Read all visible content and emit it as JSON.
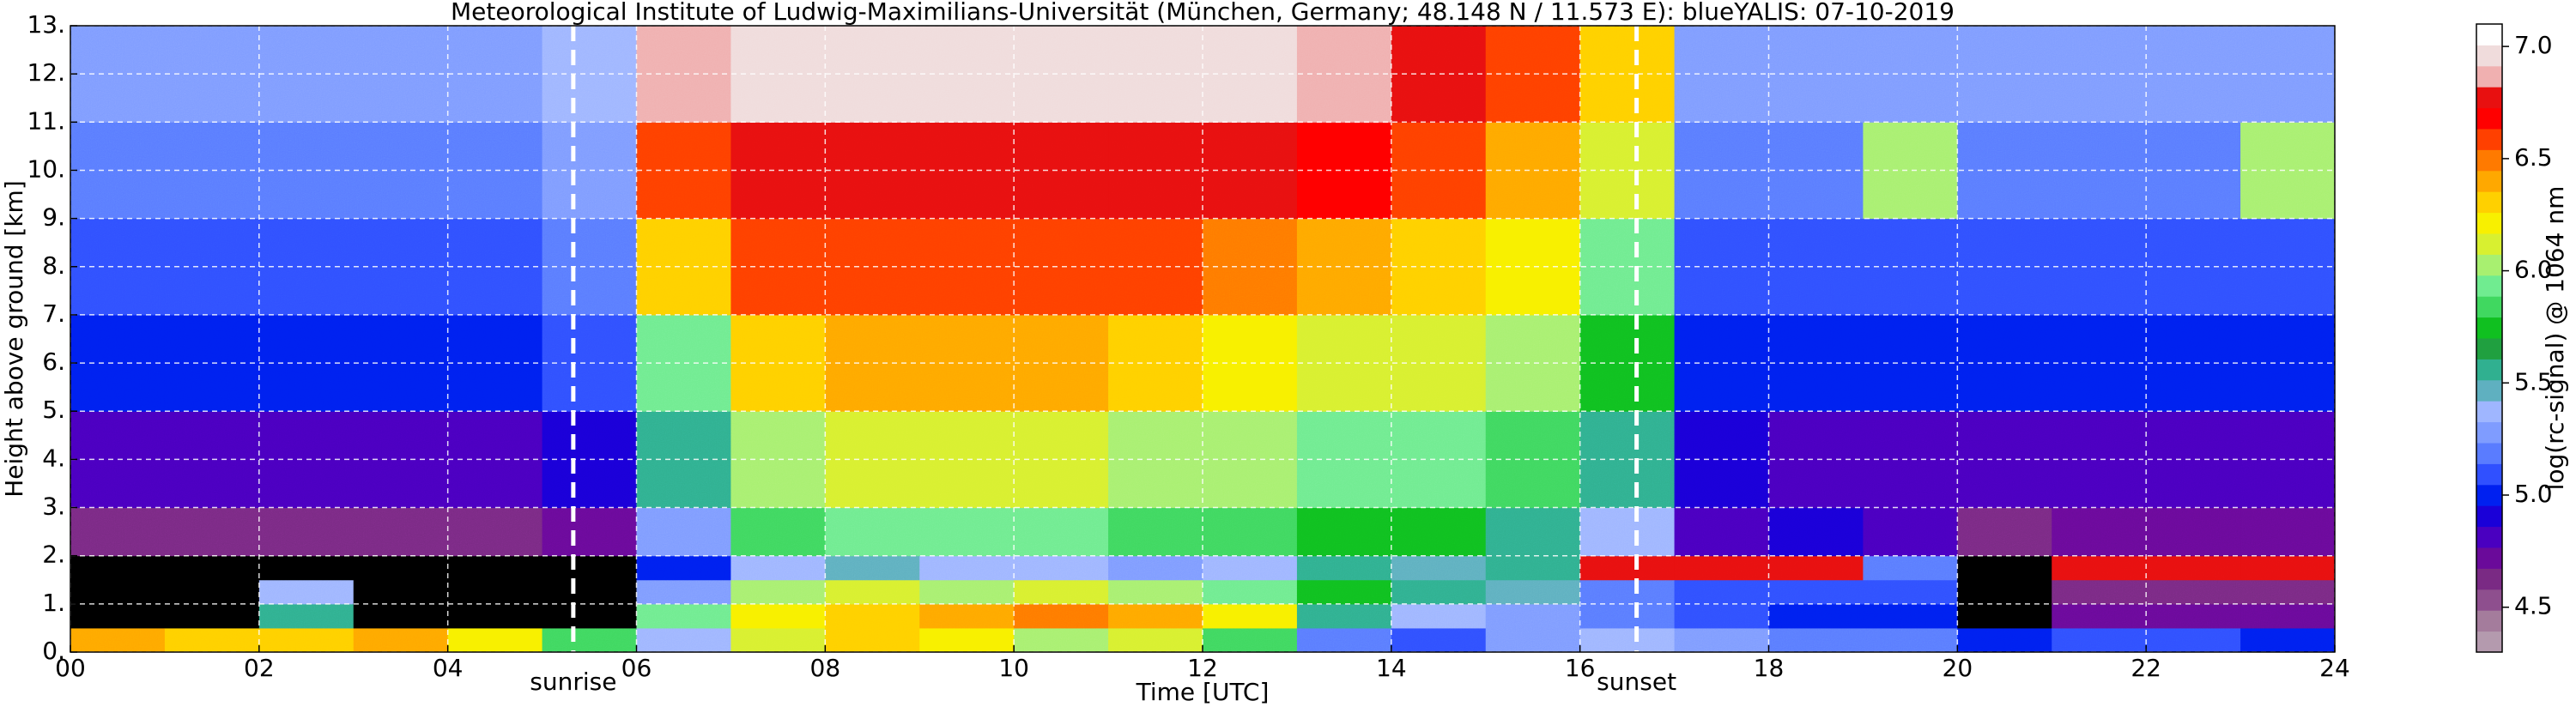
{
  "chart_data": {
    "type": "heatmap",
    "title": "Meteorological Institute of Ludwig-Maximilians-Universität (München, Germany; 48.148 N / 11.573 E):    blueYALIS: 07-10-2019",
    "xlabel": "Time [UTC]",
    "ylabel": "Height above ground [km]",
    "xlim": [
      0,
      24
    ],
    "ylim": [
      0,
      13
    ],
    "xticks": [
      {
        "value": 0,
        "label": "00"
      },
      {
        "value": 2,
        "label": "02"
      },
      {
        "value": 4,
        "label": "04"
      },
      {
        "value": 6,
        "label": "06"
      },
      {
        "value": 8,
        "label": "08"
      },
      {
        "value": 10,
        "label": "10"
      },
      12,
      14,
      16,
      18,
      20,
      22,
      24
    ],
    "yticks": [
      {
        "value": 0,
        "label": "0."
      },
      {
        "value": 1,
        "label": "1."
      },
      {
        "value": 2,
        "label": "2."
      },
      {
        "value": 3,
        "label": "3."
      },
      {
        "value": 4,
        "label": "4."
      },
      {
        "value": 5,
        "label": "5."
      },
      {
        "value": 6,
        "label": "6."
      },
      {
        "value": 7,
        "label": "7."
      },
      {
        "value": 8,
        "label": "8."
      },
      {
        "value": 9,
        "label": "9."
      },
      {
        "value": 10,
        "label": "10."
      },
      {
        "value": 11,
        "label": "11."
      },
      {
        "value": 12,
        "label": "12."
      },
      {
        "value": 13,
        "label": "13."
      }
    ],
    "grid": true,
    "x_bins": [
      0,
      1,
      2,
      3,
      4,
      5,
      6,
      7,
      8,
      9,
      10,
      11,
      12,
      13,
      14,
      15,
      16,
      17,
      18,
      19,
      20,
      21,
      22,
      23,
      24
    ],
    "y_bins": [
      0,
      0.5,
      1,
      1.5,
      2,
      3,
      5,
      7,
      9,
      11,
      13
    ],
    "values": [
      [
        6.4,
        4.0,
        4.0,
        4.0,
        4.6,
        4.8,
        5.0,
        5.1,
        5.2,
        5.3
      ],
      [
        6.3,
        4.0,
        4.0,
        4.0,
        4.6,
        4.8,
        5.0,
        5.1,
        5.2,
        5.3
      ],
      [
        6.3,
        5.6,
        5.4,
        4.0,
        4.6,
        4.8,
        5.0,
        5.1,
        5.2,
        5.3
      ],
      [
        6.4,
        4.0,
        4.0,
        4.0,
        4.6,
        4.8,
        5.0,
        5.1,
        5.2,
        5.3
      ],
      [
        6.2,
        4.0,
        4.0,
        4.0,
        4.6,
        4.8,
        5.0,
        5.1,
        5.2,
        5.3
      ],
      [
        5.8,
        4.0,
        4.0,
        4.0,
        4.7,
        4.9,
        5.1,
        5.2,
        5.3,
        5.4
      ],
      [
        5.4,
        5.9,
        5.3,
        5.0,
        5.3,
        5.6,
        5.9,
        6.3,
        6.6,
        6.9
      ],
      [
        6.1,
        6.2,
        6.0,
        5.4,
        5.8,
        6.0,
        6.3,
        6.6,
        6.8,
        7.0
      ],
      [
        6.3,
        6.3,
        6.1,
        5.5,
        5.9,
        6.1,
        6.4,
        6.6,
        6.8,
        7.0
      ],
      [
        6.2,
        6.4,
        6.0,
        5.4,
        5.9,
        6.1,
        6.4,
        6.6,
        6.8,
        7.0
      ],
      [
        6.0,
        6.5,
        6.1,
        5.4,
        5.9,
        6.1,
        6.4,
        6.6,
        6.8,
        7.0
      ],
      [
        6.1,
        6.4,
        6.0,
        5.3,
        5.8,
        6.0,
        6.3,
        6.6,
        6.8,
        7.0
      ],
      [
        5.8,
        6.2,
        5.9,
        5.4,
        5.8,
        6.0,
        6.2,
        6.5,
        6.8,
        7.0
      ],
      [
        5.2,
        5.6,
        5.7,
        5.6,
        5.7,
        5.9,
        6.1,
        6.4,
        6.7,
        6.9
      ],
      [
        5.1,
        5.4,
        5.6,
        5.5,
        5.7,
        5.9,
        6.1,
        6.3,
        6.6,
        6.8
      ],
      [
        5.3,
        5.3,
        5.5,
        5.6,
        5.6,
        5.8,
        6.0,
        6.2,
        6.4,
        6.6
      ],
      [
        5.4,
        5.2,
        5.2,
        6.8,
        5.4,
        5.6,
        5.7,
        5.9,
        6.1,
        6.3
      ],
      [
        5.3,
        5.1,
        5.1,
        6.8,
        4.8,
        4.9,
        5.0,
        5.1,
        5.2,
        5.3
      ],
      [
        5.2,
        5.0,
        5.1,
        6.8,
        4.9,
        4.8,
        5.0,
        5.1,
        5.2,
        5.3
      ],
      [
        5.2,
        5.0,
        5.1,
        5.2,
        4.8,
        4.8,
        5.0,
        5.1,
        6.0,
        5.3
      ],
      [
        5.0,
        4.0,
        4.0,
        4.0,
        4.6,
        4.8,
        5.0,
        5.1,
        5.2,
        5.3
      ],
      [
        5.1,
        4.7,
        4.6,
        6.8,
        4.7,
        4.8,
        5.0,
        5.1,
        5.2,
        5.3
      ],
      [
        5.1,
        4.7,
        4.6,
        6.8,
        4.7,
        4.8,
        5.0,
        5.1,
        5.2,
        5.3
      ],
      [
        5.0,
        4.7,
        4.6,
        6.8,
        4.7,
        4.8,
        5.0,
        5.1,
        6.0,
        5.3
      ]
    ],
    "under_color": "#000000",
    "colorbar": {
      "label": "log(rc-signal) @ 1064 nm",
      "lim": [
        4.3,
        7.1
      ],
      "ticks": [
        4.5,
        {
          "value": 5,
          "label": "5.0"
        },
        5.5,
        {
          "value": 6,
          "label": "6.0"
        },
        6.5,
        {
          "value": 7,
          "label": "7.0"
        }
      ],
      "colors": [
        "#b49aae",
        "#a47c9c",
        "#8e4f8e",
        "#7a2a84",
        "#6a0a9a",
        "#4a00c0",
        "#1a00d8",
        "#0020f0",
        "#3050ff",
        "#5a7cff",
        "#7f9cff",
        "#9fb6ff",
        "#5fb0c0",
        "#30b090",
        "#20a040",
        "#10c020",
        "#40d860",
        "#70ec90",
        "#a8f070",
        "#d8f030",
        "#f8f000",
        "#ffd000",
        "#ffa800",
        "#ff7a00",
        "#ff4000",
        "#ff0000",
        "#e81010",
        "#f0b0b0",
        "#f0dcdc",
        "#ffffff"
      ]
    },
    "annotations": [
      {
        "text": "sunrise",
        "x": 5.33
      },
      {
        "text": "sunset",
        "x": 16.6
      }
    ]
  }
}
